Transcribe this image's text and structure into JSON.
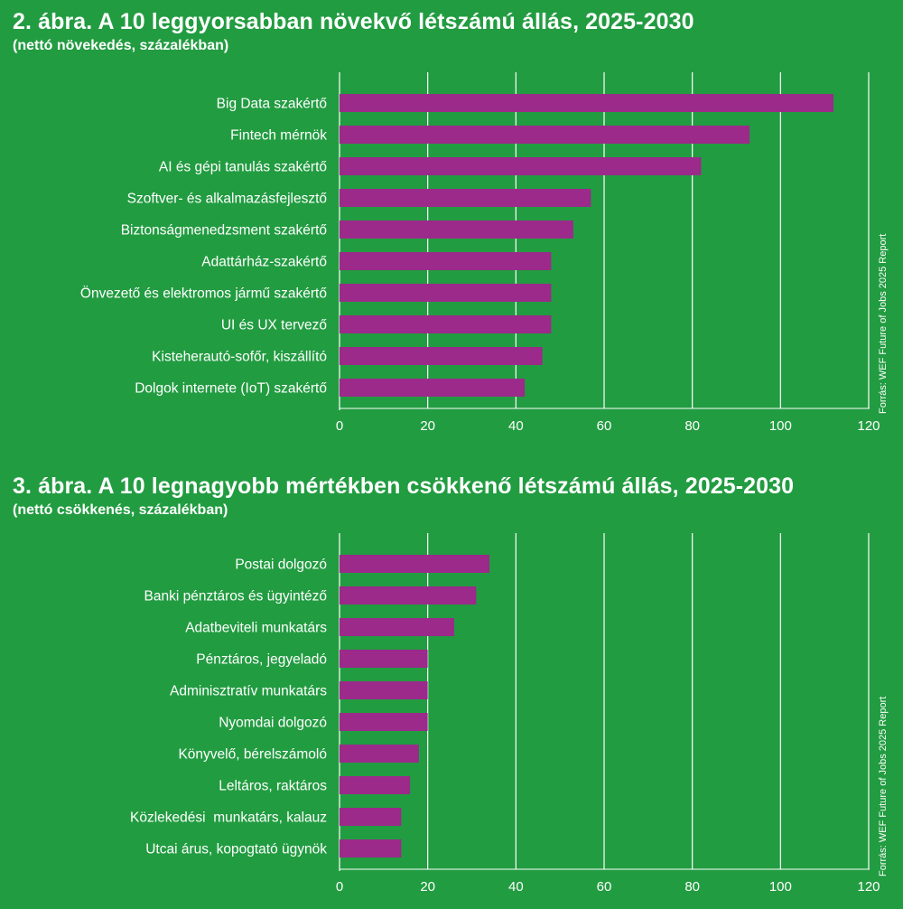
{
  "colors": {
    "background": "#229c41",
    "bar": "#9b2a8a",
    "grid": "#ffffff",
    "text": "#ffffff"
  },
  "chart_data": [
    {
      "type": "bar",
      "orientation": "horizontal",
      "title": "2. ábra. A 10 leggyorsabban növekvő létszámú állás, 2025-2030",
      "subtitle": "(nettó növekedés, százalékban)",
      "source": "Forrás: WEF Future of Jobs 2025 Report",
      "categories": [
        "Big Data szakértő",
        "Fintech mérnök",
        "AI és gépi tanulás szakértő",
        "Szoftver- és alkalmazásfejlesztő",
        "Biztonságmenedzsment szakértő",
        "Adattárház-szakértő",
        "Önvezető és elektromos jármű szakértő",
        "UI és UX tervező",
        "Kisteherautó-sofőr, kiszállító",
        "Dolgok internete (IoT) szakértő"
      ],
      "values": [
        112,
        93,
        82,
        57,
        53,
        48,
        48,
        48,
        46,
        42
      ],
      "xlim": [
        0,
        120
      ],
      "ticks": [
        "0",
        "20",
        "40",
        "60",
        "80",
        "100",
        "120"
      ],
      "grid": true
    },
    {
      "type": "bar",
      "orientation": "horizontal",
      "title": "3. ábra. A 10 legnagyobb mértékben csökkenő létszámú állás, 2025-2030",
      "subtitle": "(nettó csökkenés, százalékban)",
      "source": "Forrás: WEF Future of Jobs 2025 Report",
      "categories": [
        "Postai dolgozó",
        "Banki pénztáros és ügyintéző",
        "Adatbeviteli munkatárs",
        "Pénztáros, jegyeladó",
        "Adminisztratív munkatárs",
        "Nyomdai dolgozó",
        "Könyvelő, bérelszámoló",
        "Leltáros, raktáros",
        "Közlekedési  munkatárs, kalauz",
        "Utcai árus, kopogtató ügynök"
      ],
      "values": [
        34,
        31,
        26,
        20,
        20,
        20,
        18,
        16,
        14,
        14
      ],
      "xlim": [
        0,
        120
      ],
      "ticks": [
        "0",
        "20",
        "40",
        "60",
        "80",
        "100",
        "120"
      ],
      "grid": true
    }
  ]
}
